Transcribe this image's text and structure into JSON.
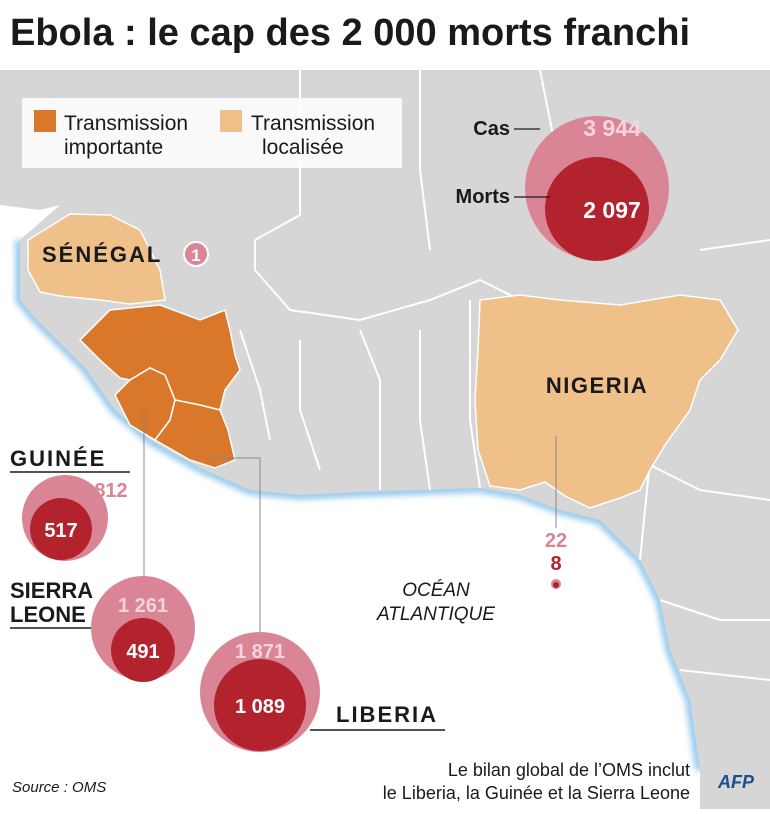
{
  "title": "Ebola : le cap des 2 000 morts franchi",
  "legend": {
    "important": {
      "line1": "Transmission",
      "line2": "importante",
      "color": "#d9772b"
    },
    "localized": {
      "line1": "Transmission",
      "line2": "localisée",
      "color": "#efc08a"
    }
  },
  "key": {
    "cases_label": "Cas",
    "deaths_label": "Morts",
    "cases": "3 944",
    "deaths": "2 097"
  },
  "ocean": {
    "line1": "OCÉAN",
    "line2": "ATLANTIQUE"
  },
  "countries": {
    "senegal": {
      "name": "SÉNÉGAL",
      "cases": "1"
    },
    "nigeria": {
      "name": "NIGERIA",
      "cases": "22",
      "deaths": "8"
    },
    "guinea": {
      "name": "GUINÉE",
      "cases": "812",
      "deaths": "517"
    },
    "sierra_leone": {
      "name_line1": "SIERRA",
      "name_line2": "LEONE",
      "cases": "1 261",
      "deaths": "491"
    },
    "liberia": {
      "name": "LIBERIA",
      "cases": "1 871",
      "deaths": "1 089"
    }
  },
  "footer": {
    "source": "Source : OMS",
    "note_line1": "Le bilan global de l’OMS inclut",
    "note_line2": "le Liberia, la Guinée et la Sierra Leone",
    "logo": "AFP"
  },
  "colors": {
    "land": "#d6d6d6",
    "ocean": "#ffffff",
    "coast_glow": "#4aa3df",
    "border": "#ffffff",
    "cases_circle": "#d98596",
    "deaths_circle": "#b3232e",
    "cases_text_light": "#f7d4dc",
    "cases_text_dark": "#d98596"
  }
}
